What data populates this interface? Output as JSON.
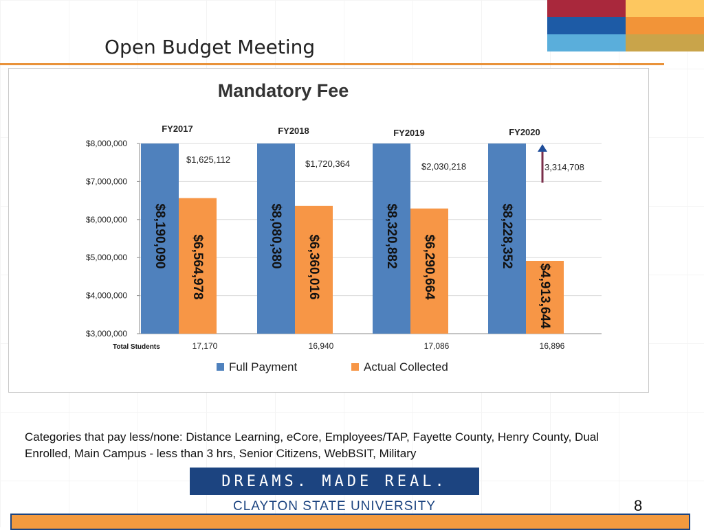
{
  "slide": {
    "title": "Open Budget Meeting",
    "page_number": "8",
    "caption": "Categories that pay less/none: Distance Learning, eCore, Employees/TAP, Fayette County, Henry County, Dual Enrolled, Main Campus - less than 3 hrs, Senior Citizens, WebBSIT, Military",
    "banner_text": "DREAMS. MADE REAL.",
    "university": "CLAYTON STATE UNIVERSITY"
  },
  "colors": {
    "accent_orange": "#e9923a",
    "brand_blue": "#1c4480",
    "logo": [
      "#a9283c",
      "#fdc75f",
      "#1d5ba6",
      "#f29438",
      "#5aaedb",
      "#c9a44a"
    ]
  },
  "chart_data": {
    "type": "bar",
    "title": "Mandatory Fee",
    "categories": [
      "FY2017",
      "FY2018",
      "FY2019",
      "FY2020"
    ],
    "series": [
      {
        "name": "Full Payment",
        "color": "#4f81bd",
        "values": [
          8190090,
          8080380,
          8320882,
          8228352
        ],
        "labels": [
          "$8,190,090",
          "$8,080,380",
          "$8,320,882",
          "$8,228,352"
        ]
      },
      {
        "name": "Actual Collected",
        "color": "#f79646",
        "values": [
          6564978,
          6360016,
          6290664,
          4913644
        ],
        "labels": [
          "$6,564,978",
          "$6,360,016",
          "$6,290,664",
          "$4,913,644"
        ]
      }
    ],
    "differences": [
      "$1,625,112",
      "$1,720,364",
      "$2,030,218",
      "3,314,708"
    ],
    "students_label": "Total Students",
    "students": [
      "17,170",
      "16,940",
      "17,086",
      "16,896"
    ],
    "ylim": [
      3000000,
      8000000
    ],
    "yticks": [
      3000000,
      4000000,
      5000000,
      6000000,
      7000000,
      8000000
    ],
    "ytick_labels": [
      "$3,000,000",
      "$4,000,000",
      "$5,000,000",
      "$6,000,000",
      "$7,000,000",
      "$8,000,000"
    ],
    "grid": true,
    "legend": "bottom"
  }
}
